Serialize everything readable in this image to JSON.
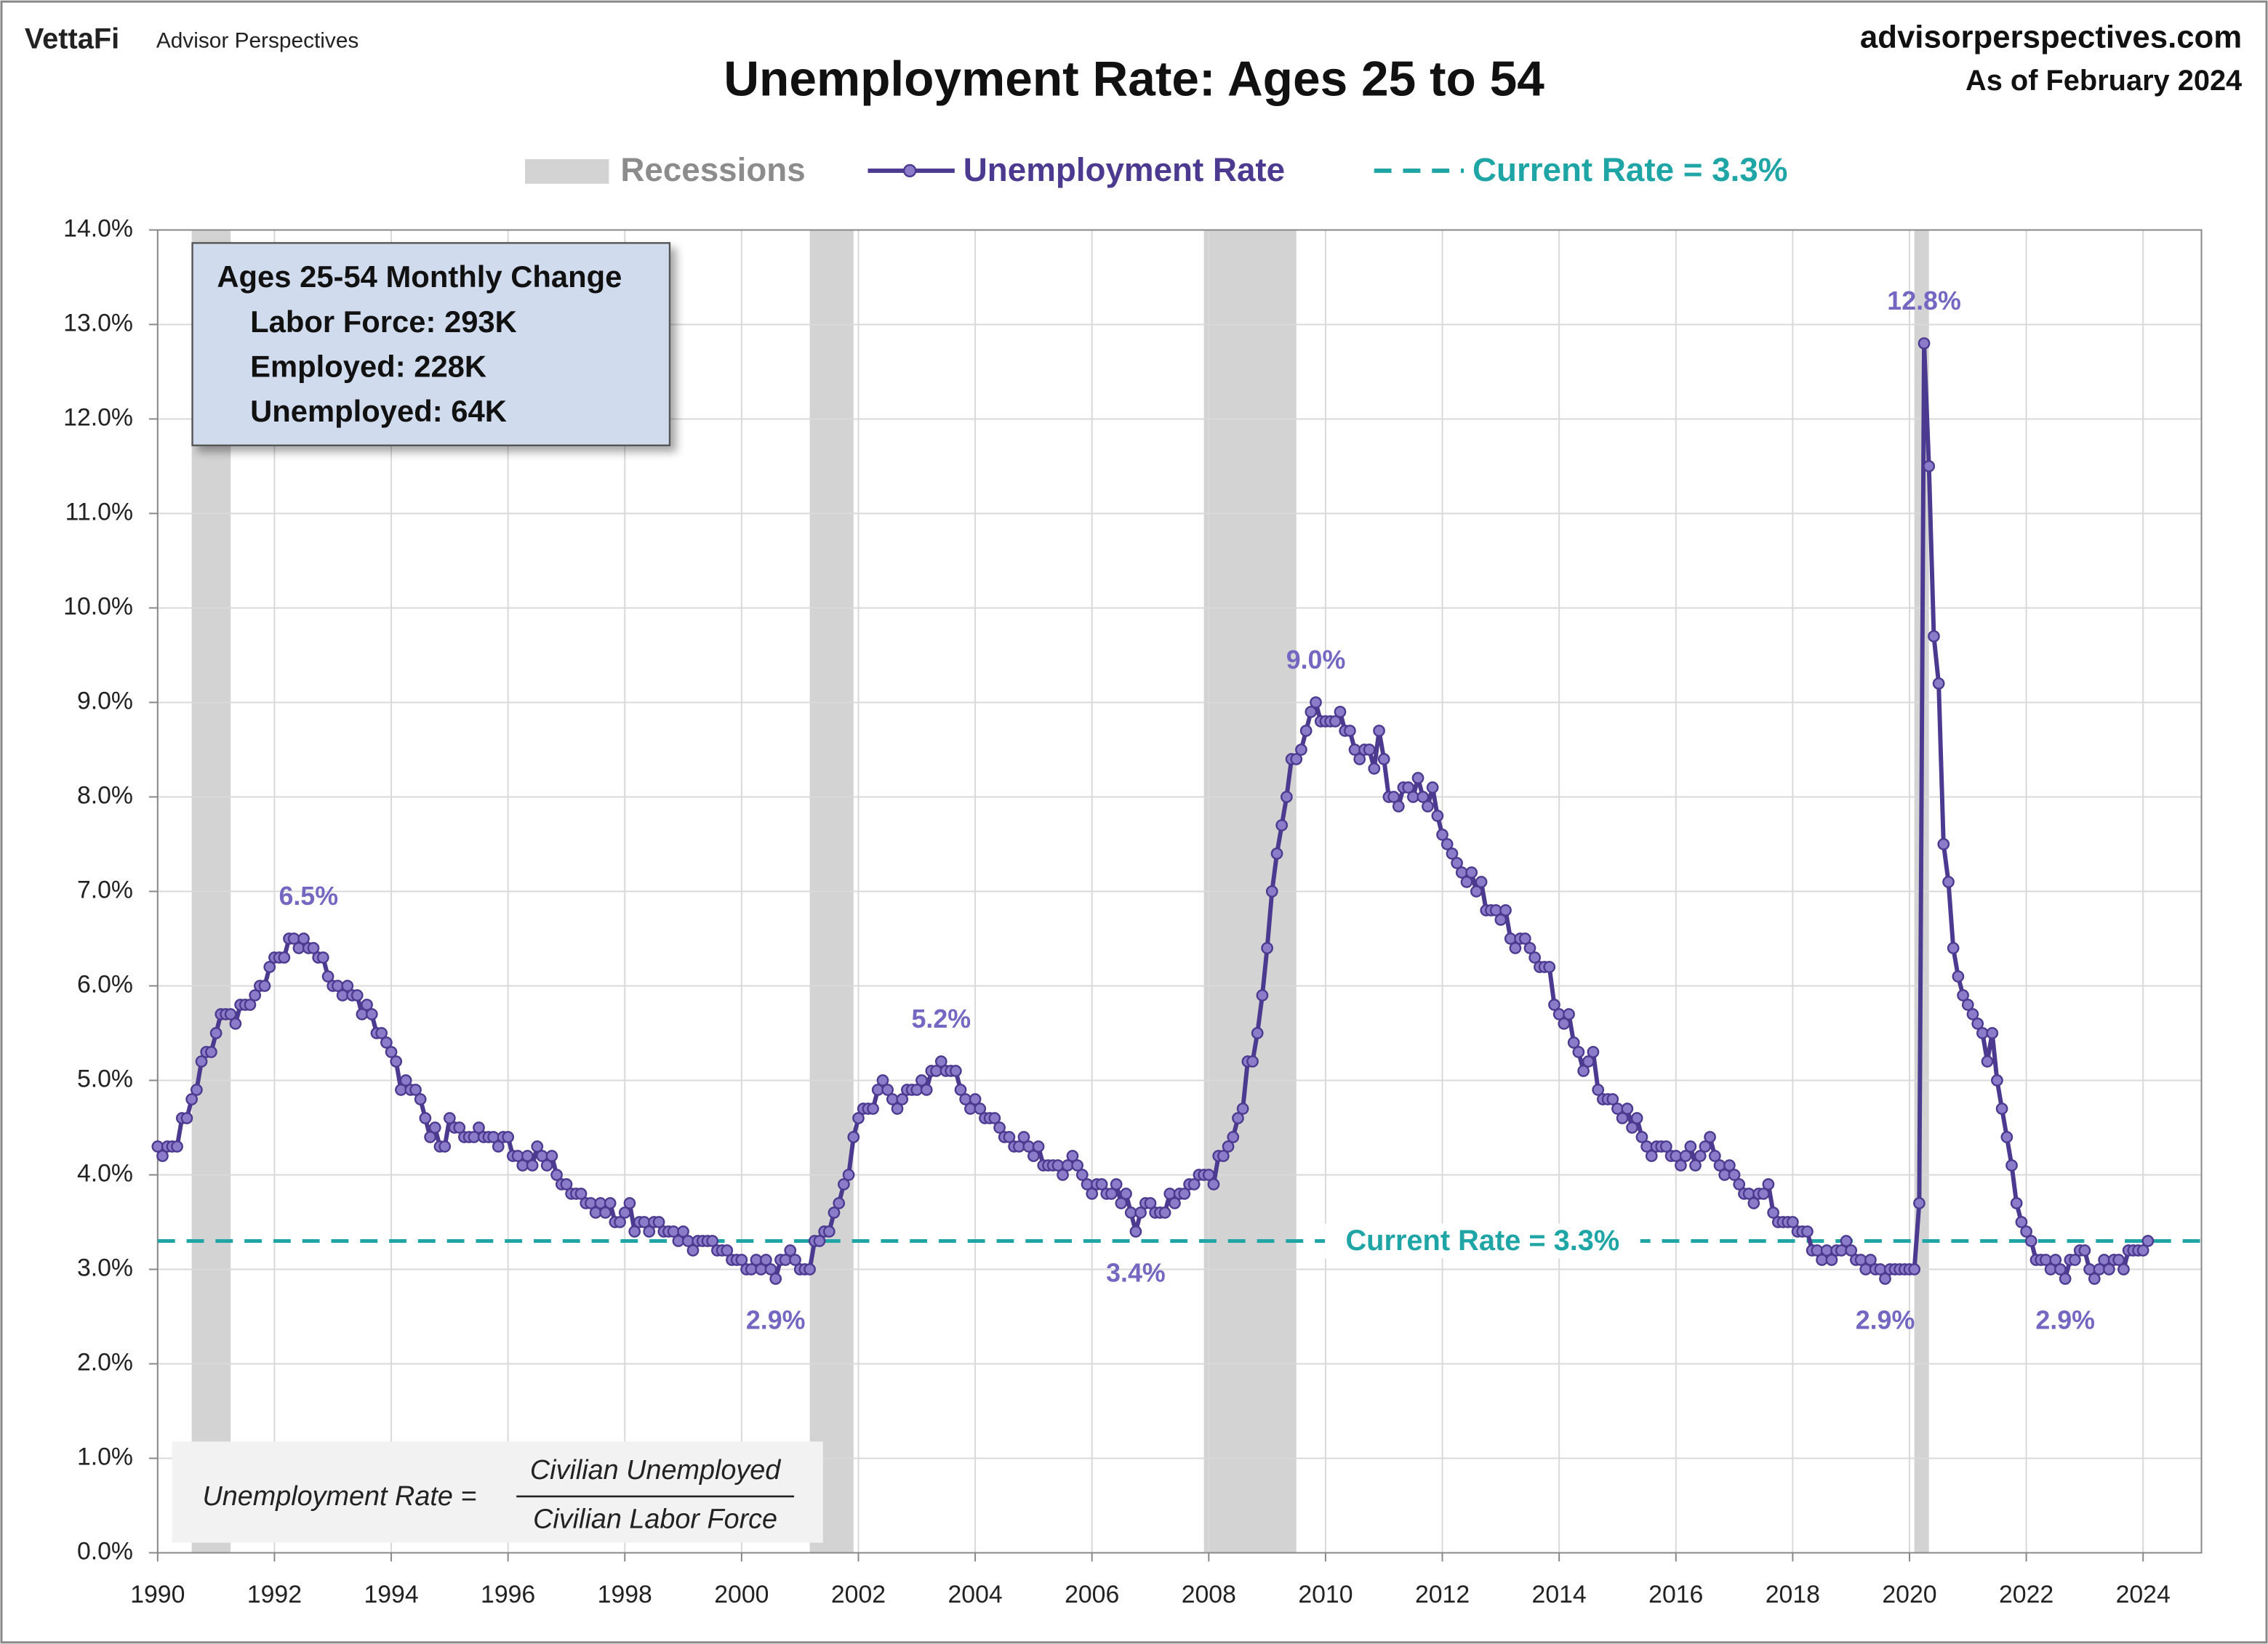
{
  "header": {
    "brand": "VettaFi",
    "brand_sub": "Advisor Perspectives",
    "site": "advisorperspectives.com",
    "as_of": "As of February 2024"
  },
  "chart_data": {
    "type": "line",
    "title": "Unemployment Rate: Ages 25 to 54",
    "xlim": [
      1990,
      2025
    ],
    "xticks": [
      1990,
      1992,
      1994,
      1996,
      1998,
      2000,
      2002,
      2004,
      2006,
      2008,
      2010,
      2012,
      2014,
      2016,
      2018,
      2020,
      2022,
      2024
    ],
    "ylim": [
      0,
      14
    ],
    "yticks": [
      {
        "value": 0,
        "label": "0.0%"
      },
      {
        "value": 1,
        "label": "1.0%"
      },
      {
        "value": 2,
        "label": "2.0%"
      },
      {
        "value": 3,
        "label": "3.0%"
      },
      {
        "value": 4,
        "label": "4.0%"
      },
      {
        "value": 5,
        "label": "5.0%"
      },
      {
        "value": 6,
        "label": "6.0%"
      },
      {
        "value": 7,
        "label": "7.0%"
      },
      {
        "value": 8,
        "label": "8.0%"
      },
      {
        "value": 9,
        "label": "9.0%"
      },
      {
        "value": 10,
        "label": "10.0%"
      },
      {
        "value": 11,
        "label": "11.0%"
      },
      {
        "value": 12,
        "label": "12.0%"
      },
      {
        "value": 13,
        "label": "13.0%"
      },
      {
        "value": 14,
        "label": "14.0%"
      }
    ],
    "grid": true,
    "recessions_name": "Recessions",
    "recessions_color": "#d3d3d3",
    "recessions": [
      [
        1990.583,
        1991.25
      ],
      [
        2001.167,
        2001.917
      ],
      [
        2007.917,
        2009.5
      ],
      [
        2020.083,
        2020.333
      ]
    ],
    "reference_line": {
      "name": "Current Rate = 3.3%",
      "value": 3.3,
      "color": "#1fa5a5"
    },
    "x": [
      1990,
      1990.083,
      1990.167,
      1990.25,
      1990.333,
      1990.417,
      1990.5,
      1990.583,
      1990.667,
      1990.75,
      1990.833,
      1990.917,
      1991,
      1991.083,
      1991.167,
      1991.25,
      1991.333,
      1991.417,
      1991.5,
      1991.583,
      1991.667,
      1991.75,
      1991.833,
      1991.917,
      1992,
      1992.083,
      1992.167,
      1992.25,
      1992.333,
      1992.417,
      1992.5,
      1992.583,
      1992.667,
      1992.75,
      1992.833,
      1992.917,
      1993,
      1993.083,
      1993.167,
      1993.25,
      1993.333,
      1993.417,
      1993.5,
      1993.583,
      1993.667,
      1993.75,
      1993.833,
      1993.917,
      1994,
      1994.083,
      1994.167,
      1994.25,
      1994.333,
      1994.417,
      1994.5,
      1994.583,
      1994.667,
      1994.75,
      1994.833,
      1994.917,
      1995,
      1995.083,
      1995.167,
      1995.25,
      1995.333,
      1995.417,
      1995.5,
      1995.583,
      1995.667,
      1995.75,
      1995.833,
      1995.917,
      1996,
      1996.083,
      1996.167,
      1996.25,
      1996.333,
      1996.417,
      1996.5,
      1996.583,
      1996.667,
      1996.75,
      1996.833,
      1996.917,
      1997,
      1997.083,
      1997.167,
      1997.25,
      1997.333,
      1997.417,
      1997.5,
      1997.583,
      1997.667,
      1997.75,
      1997.833,
      1997.917,
      1998,
      1998.083,
      1998.167,
      1998.25,
      1998.333,
      1998.417,
      1998.5,
      1998.583,
      1998.667,
      1998.75,
      1998.833,
      1998.917,
      1999,
      1999.083,
      1999.167,
      1999.25,
      1999.333,
      1999.417,
      1999.5,
      1999.583,
      1999.667,
      1999.75,
      1999.833,
      1999.917,
      2000,
      2000.083,
      2000.167,
      2000.25,
      2000.333,
      2000.417,
      2000.5,
      2000.583,
      2000.667,
      2000.75,
      2000.833,
      2000.917,
      2001,
      2001.083,
      2001.167,
      2001.25,
      2001.333,
      2001.417,
      2001.5,
      2001.583,
      2001.667,
      2001.75,
      2001.833,
      2001.917,
      2002,
      2002.083,
      2002.167,
      2002.25,
      2002.333,
      2002.417,
      2002.5,
      2002.583,
      2002.667,
      2002.75,
      2002.833,
      2002.917,
      2003,
      2003.083,
      2003.167,
      2003.25,
      2003.333,
      2003.417,
      2003.5,
      2003.583,
      2003.667,
      2003.75,
      2003.833,
      2003.917,
      2004,
      2004.083,
      2004.167,
      2004.25,
      2004.333,
      2004.417,
      2004.5,
      2004.583,
      2004.667,
      2004.75,
      2004.833,
      2004.917,
      2005,
      2005.083,
      2005.167,
      2005.25,
      2005.333,
      2005.417,
      2005.5,
      2005.583,
      2005.667,
      2005.75,
      2005.833,
      2005.917,
      2006,
      2006.083,
      2006.167,
      2006.25,
      2006.333,
      2006.417,
      2006.5,
      2006.583,
      2006.667,
      2006.75,
      2006.833,
      2006.917,
      2007,
      2007.083,
      2007.167,
      2007.25,
      2007.333,
      2007.417,
      2007.5,
      2007.583,
      2007.667,
      2007.75,
      2007.833,
      2007.917,
      2008,
      2008.083,
      2008.167,
      2008.25,
      2008.333,
      2008.417,
      2008.5,
      2008.583,
      2008.667,
      2008.75,
      2008.833,
      2008.917,
      2009,
      2009.083,
      2009.167,
      2009.25,
      2009.333,
      2009.417,
      2009.5,
      2009.583,
      2009.667,
      2009.75,
      2009.833,
      2009.917,
      2010,
      2010.083,
      2010.167,
      2010.25,
      2010.333,
      2010.417,
      2010.5,
      2010.583,
      2010.667,
      2010.75,
      2010.833,
      2010.917,
      2011,
      2011.083,
      2011.167,
      2011.25,
      2011.333,
      2011.417,
      2011.5,
      2011.583,
      2011.667,
      2011.75,
      2011.833,
      2011.917,
      2012,
      2012.083,
      2012.167,
      2012.25,
      2012.333,
      2012.417,
      2012.5,
      2012.583,
      2012.667,
      2012.75,
      2012.833,
      2012.917,
      2013,
      2013.083,
      2013.167,
      2013.25,
      2013.333,
      2013.417,
      2013.5,
      2013.583,
      2013.667,
      2013.75,
      2013.833,
      2013.917,
      2014,
      2014.083,
      2014.167,
      2014.25,
      2014.333,
      2014.417,
      2014.5,
      2014.583,
      2014.667,
      2014.75,
      2014.833,
      2014.917,
      2015,
      2015.083,
      2015.167,
      2015.25,
      2015.333,
      2015.417,
      2015.5,
      2015.583,
      2015.667,
      2015.75,
      2015.833,
      2015.917,
      2016,
      2016.083,
      2016.167,
      2016.25,
      2016.333,
      2016.417,
      2016.5,
      2016.583,
      2016.667,
      2016.75,
      2016.833,
      2016.917,
      2017,
      2017.083,
      2017.167,
      2017.25,
      2017.333,
      2017.417,
      2017.5,
      2017.583,
      2017.667,
      2017.75,
      2017.833,
      2017.917,
      2018,
      2018.083,
      2018.167,
      2018.25,
      2018.333,
      2018.417,
      2018.5,
      2018.583,
      2018.667,
      2018.75,
      2018.833,
      2018.917,
      2019,
      2019.083,
      2019.167,
      2019.25,
      2019.333,
      2019.417,
      2019.5,
      2019.583,
      2019.667,
      2019.75,
      2019.833,
      2019.917,
      2020,
      2020.083,
      2020.167,
      2020.25,
      2020.333,
      2020.417,
      2020.5,
      2020.583,
      2020.667,
      2020.75,
      2020.833,
      2020.917,
      2021,
      2021.083,
      2021.167,
      2021.25,
      2021.333,
      2021.417,
      2021.5,
      2021.583,
      2021.667,
      2021.75,
      2021.833,
      2021.917,
      2022,
      2022.083,
      2022.167,
      2022.25,
      2022.333,
      2022.417,
      2022.5,
      2022.583,
      2022.667,
      2022.75,
      2022.833,
      2022.917,
      2023,
      2023.083,
      2023.167,
      2023.25,
      2023.333,
      2023.417,
      2023.5,
      2023.583,
      2023.667,
      2023.75,
      2023.833,
      2023.917,
      2024,
      2024.083
    ],
    "series": [
      {
        "name": "Unemployment Rate",
        "color": "#4b3a8f",
        "marker_color": "#8a7cc9",
        "values": [
          4.3,
          4.2,
          4.3,
          4.3,
          4.3,
          4.6,
          4.6,
          4.8,
          4.9,
          5.2,
          5.3,
          5.3,
          5.5,
          5.7,
          5.7,
          5.7,
          5.6,
          5.8,
          5.8,
          5.8,
          5.9,
          6.0,
          6.0,
          6.2,
          6.3,
          6.3,
          6.3,
          6.5,
          6.5,
          6.4,
          6.5,
          6.4,
          6.4,
          6.3,
          6.3,
          6.1,
          6.0,
          6.0,
          5.9,
          6.0,
          5.9,
          5.9,
          5.7,
          5.8,
          5.7,
          5.5,
          5.5,
          5.4,
          5.3,
          5.2,
          4.9,
          5.0,
          4.9,
          4.9,
          4.8,
          4.6,
          4.4,
          4.5,
          4.3,
          4.3,
          4.6,
          4.5,
          4.5,
          4.4,
          4.4,
          4.4,
          4.5,
          4.4,
          4.4,
          4.4,
          4.3,
          4.4,
          4.4,
          4.2,
          4.2,
          4.1,
          4.2,
          4.1,
          4.3,
          4.2,
          4.1,
          4.2,
          4.0,
          3.9,
          3.9,
          3.8,
          3.8,
          3.8,
          3.7,
          3.7,
          3.6,
          3.7,
          3.6,
          3.7,
          3.5,
          3.5,
          3.6,
          3.7,
          3.4,
          3.5,
          3.5,
          3.4,
          3.5,
          3.5,
          3.4,
          3.4,
          3.4,
          3.3,
          3.4,
          3.3,
          3.2,
          3.3,
          3.3,
          3.3,
          3.3,
          3.2,
          3.2,
          3.2,
          3.1,
          3.1,
          3.1,
          3.0,
          3.0,
          3.1,
          3.0,
          3.1,
          3.0,
          2.9,
          3.1,
          3.1,
          3.2,
          3.1,
          3.0,
          3.0,
          3.0,
          3.3,
          3.3,
          3.4,
          3.4,
          3.6,
          3.7,
          3.9,
          4.0,
          4.4,
          4.6,
          4.7,
          4.7,
          4.7,
          4.9,
          5.0,
          4.9,
          4.8,
          4.7,
          4.8,
          4.9,
          4.9,
          4.9,
          5.0,
          4.9,
          5.1,
          5.1,
          5.2,
          5.1,
          5.1,
          5.1,
          4.9,
          4.8,
          4.7,
          4.8,
          4.7,
          4.6,
          4.6,
          4.6,
          4.5,
          4.4,
          4.4,
          4.3,
          4.3,
          4.4,
          4.3,
          4.2,
          4.3,
          4.1,
          4.1,
          4.1,
          4.1,
          4.0,
          4.1,
          4.2,
          4.1,
          4.0,
          3.9,
          3.8,
          3.9,
          3.9,
          3.8,
          3.8,
          3.9,
          3.7,
          3.8,
          3.6,
          3.4,
          3.6,
          3.7,
          3.7,
          3.6,
          3.6,
          3.6,
          3.8,
          3.7,
          3.8,
          3.8,
          3.9,
          3.9,
          4.0,
          4.0,
          4.0,
          3.9,
          4.2,
          4.2,
          4.3,
          4.4,
          4.6,
          4.7,
          5.2,
          5.2,
          5.5,
          5.9,
          6.4,
          7.0,
          7.4,
          7.7,
          8.0,
          8.4,
          8.4,
          8.5,
          8.7,
          8.9,
          9.0,
          8.8,
          8.8,
          8.8,
          8.8,
          8.9,
          8.7,
          8.7,
          8.5,
          8.4,
          8.5,
          8.5,
          8.3,
          8.7,
          8.4,
          8.0,
          8.0,
          7.9,
          8.1,
          8.1,
          8.0,
          8.2,
          8.0,
          7.9,
          8.1,
          7.8,
          7.6,
          7.5,
          7.4,
          7.3,
          7.2,
          7.1,
          7.2,
          7.0,
          7.1,
          6.8,
          6.8,
          6.8,
          6.7,
          6.8,
          6.5,
          6.4,
          6.5,
          6.5,
          6.4,
          6.3,
          6.2,
          6.2,
          6.2,
          5.8,
          5.7,
          5.6,
          5.7,
          5.4,
          5.3,
          5.1,
          5.2,
          5.3,
          4.9,
          4.8,
          4.8,
          4.8,
          4.7,
          4.6,
          4.7,
          4.5,
          4.6,
          4.4,
          4.3,
          4.2,
          4.3,
          4.3,
          4.3,
          4.2,
          4.2,
          4.1,
          4.2,
          4.3,
          4.1,
          4.2,
          4.3,
          4.4,
          4.2,
          4.1,
          4.0,
          4.1,
          4.0,
          3.9,
          3.8,
          3.8,
          3.7,
          3.8,
          3.8,
          3.9,
          3.6,
          3.5,
          3.5,
          3.5,
          3.5,
          3.4,
          3.4,
          3.4,
          3.2,
          3.2,
          3.1,
          3.2,
          3.1,
          3.2,
          3.2,
          3.3,
          3.2,
          3.1,
          3.1,
          3.0,
          3.1,
          3.0,
          3.0,
          2.9,
          3.0,
          3.0,
          3.0,
          3.0,
          3.0,
          3.0,
          3.7,
          12.8,
          11.5,
          9.7,
          9.2,
          7.5,
          7.1,
          6.4,
          6.1,
          5.9,
          5.8,
          5.7,
          5.6,
          5.5,
          5.2,
          5.5,
          5.0,
          4.7,
          4.4,
          4.1,
          3.7,
          3.5,
          3.4,
          3.3,
          3.1,
          3.1,
          3.1,
          3.0,
          3.1,
          3.0,
          2.9,
          3.1,
          3.1,
          3.2,
          3.2,
          3.0,
          2.9,
          3.0,
          3.1,
          3.0,
          3.1,
          3.1,
          3.0,
          3.2,
          3.2,
          3.2,
          3.2,
          3.3
        ]
      }
    ],
    "annotations": [
      {
        "text": "6.5%",
        "x": 1992.583,
        "y": 6.5,
        "position": "above"
      },
      {
        "text": "2.9%",
        "x": 2000.583,
        "y": 2.9,
        "position": "below"
      },
      {
        "text": "5.2%",
        "x": 2003.417,
        "y": 5.2,
        "position": "above"
      },
      {
        "text": "3.4%",
        "x": 2006.75,
        "y": 3.4,
        "position": "below"
      },
      {
        "text": "9.0%",
        "x": 2009.833,
        "y": 9.0,
        "position": "above"
      },
      {
        "text": "12.8%",
        "x": 2020.25,
        "y": 12.8,
        "position": "above"
      },
      {
        "text": "2.9%",
        "x": 2019.583,
        "y": 2.9,
        "position": "below"
      },
      {
        "text": "2.9%",
        "x": 2022.667,
        "y": 2.9,
        "position": "below"
      }
    ],
    "info_box": {
      "title": "Ages 25-54 Monthly Change",
      "lines": [
        "Labor Force: 293K",
        "Employed: 228K",
        "Unemployed: 64K"
      ]
    },
    "formula": {
      "lhs": "Unemployment Rate =",
      "numerator": "Civilian Unemployed",
      "denominator": "Civilian Labor Force"
    }
  }
}
